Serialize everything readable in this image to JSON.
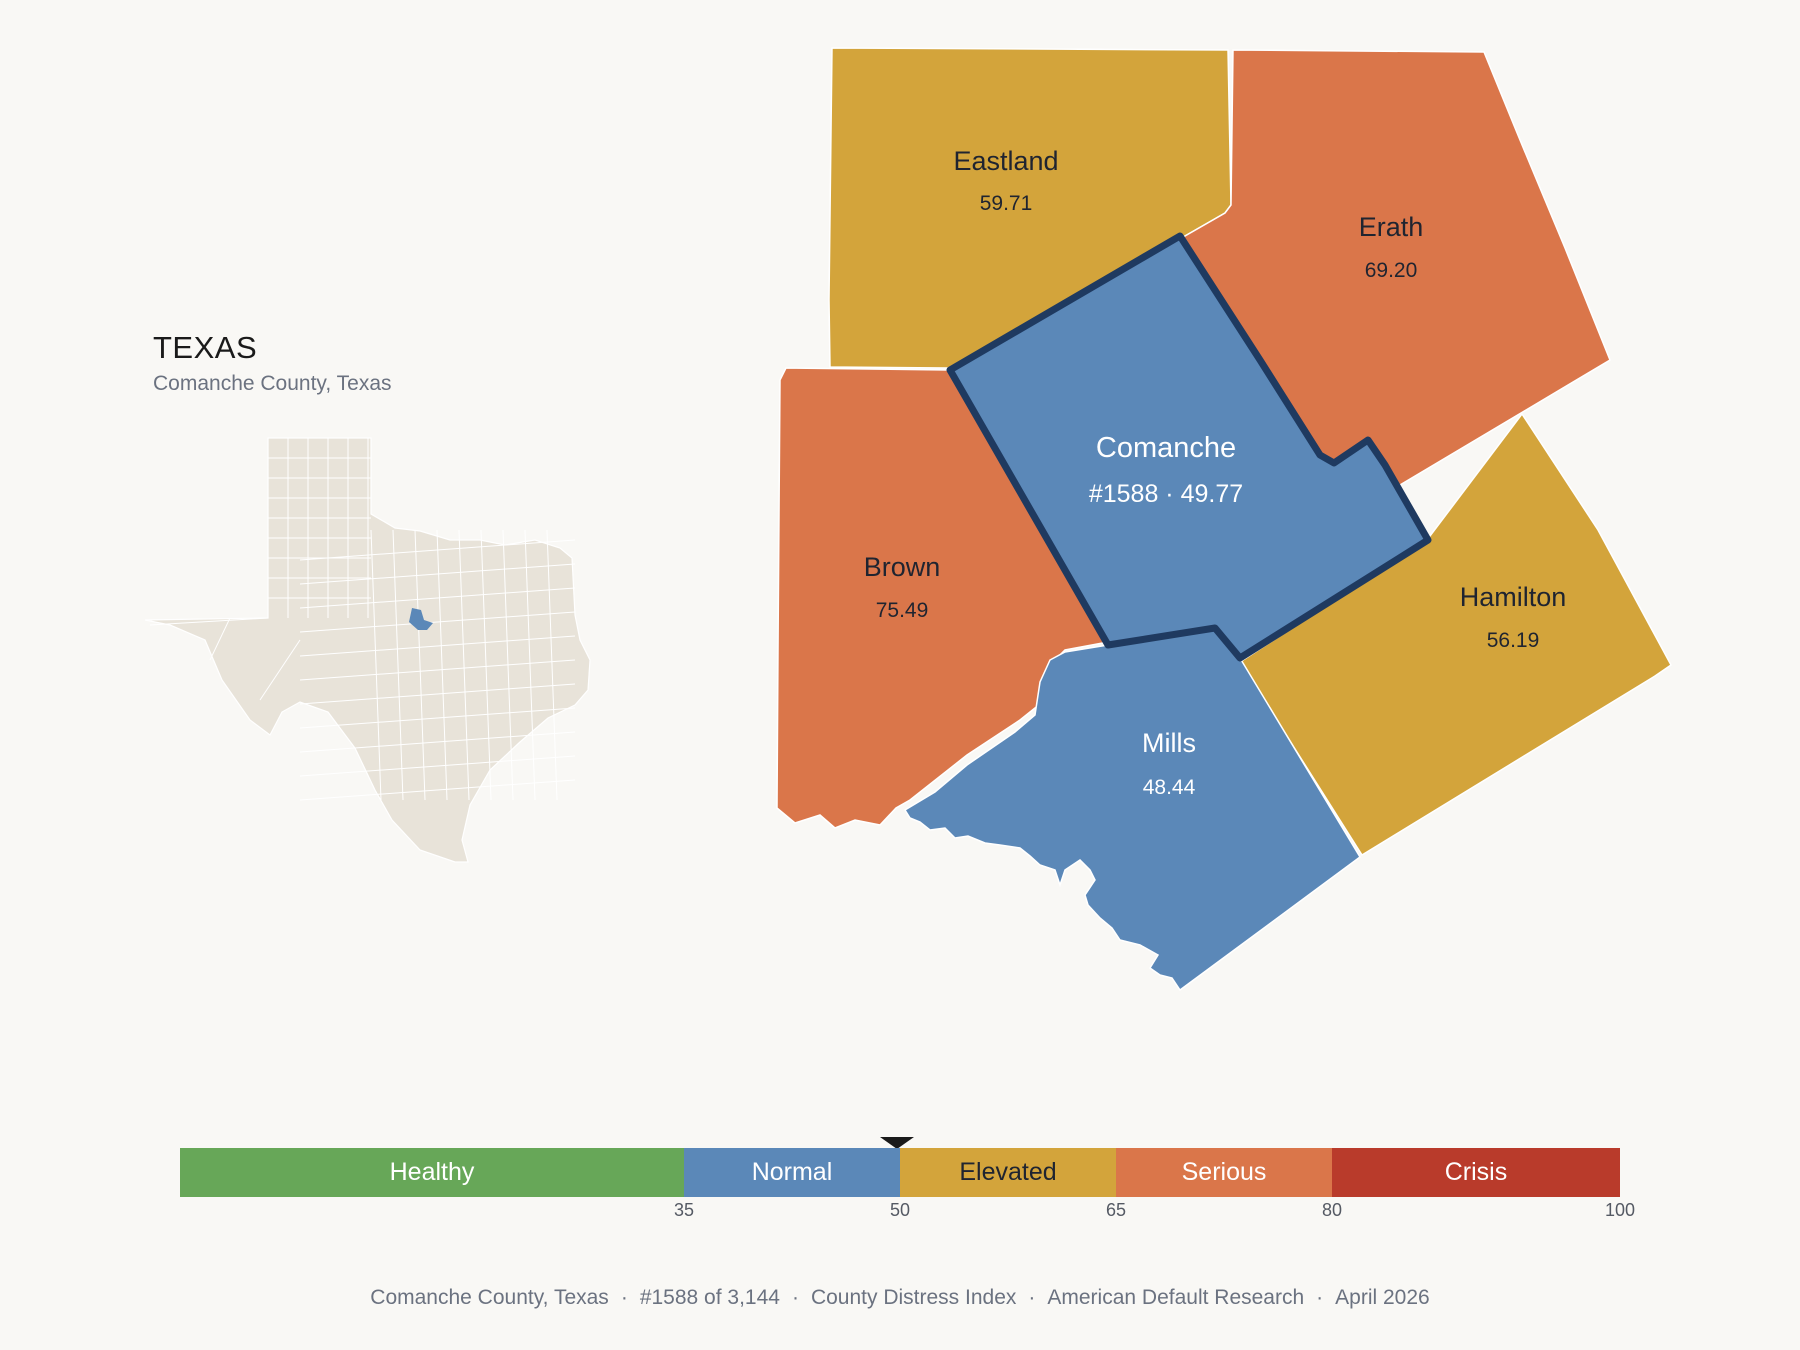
{
  "header": {
    "state_name": "TEXAS",
    "subtitle": "Comanche County, Texas"
  },
  "map": {
    "counties": [
      {
        "name": "Eastland",
        "value": "59.71",
        "category": "Elevated",
        "color": "#d3a43b",
        "text_color": "#1f2430"
      },
      {
        "name": "Erath",
        "value": "69.20",
        "category": "Serious",
        "color": "#da764a",
        "text_color": "#1f2430"
      },
      {
        "name": "Comanche",
        "value": "#1588 · 49.77",
        "category": "Normal",
        "color": "#5b88b8",
        "text_color": "#ffffff",
        "selected": true
      },
      {
        "name": "Brown",
        "value": "75.49",
        "category": "Serious",
        "color": "#da764a",
        "text_color": "#1f2430"
      },
      {
        "name": "Hamilton",
        "value": "56.19",
        "category": "Elevated",
        "color": "#d3a43b",
        "text_color": "#1f2430"
      },
      {
        "name": "Mills",
        "value": "48.44",
        "category": "Normal",
        "color": "#5b88b8",
        "text_color": "#ffffff"
      }
    ],
    "selected_border_color": "#1f3a60",
    "inset_fill": "#e8e3d9",
    "inset_highlight": "#5b88b8"
  },
  "legend": {
    "min": 0,
    "max": 100,
    "marker_value": 49.77,
    "segments": [
      {
        "label": "Healthy",
        "from": 0,
        "to": 35,
        "color": "#67a758"
      },
      {
        "label": "Normal",
        "from": 35,
        "to": 50,
        "color": "#5b88b8"
      },
      {
        "label": "Elevated",
        "from": 50,
        "to": 65,
        "color": "#d3a43b"
      },
      {
        "label": "Serious",
        "from": 65,
        "to": 80,
        "color": "#da764a"
      },
      {
        "label": "Crisis",
        "from": 80,
        "to": 100,
        "color": "#b93b2b"
      }
    ],
    "ticks": [
      "35",
      "50",
      "65",
      "80",
      "100"
    ]
  },
  "footer": {
    "items": [
      "Comanche County, Texas",
      "#1588 of 3,144",
      "County Distress Index",
      "American Default Research",
      "April 2026"
    ],
    "separator": "·"
  }
}
